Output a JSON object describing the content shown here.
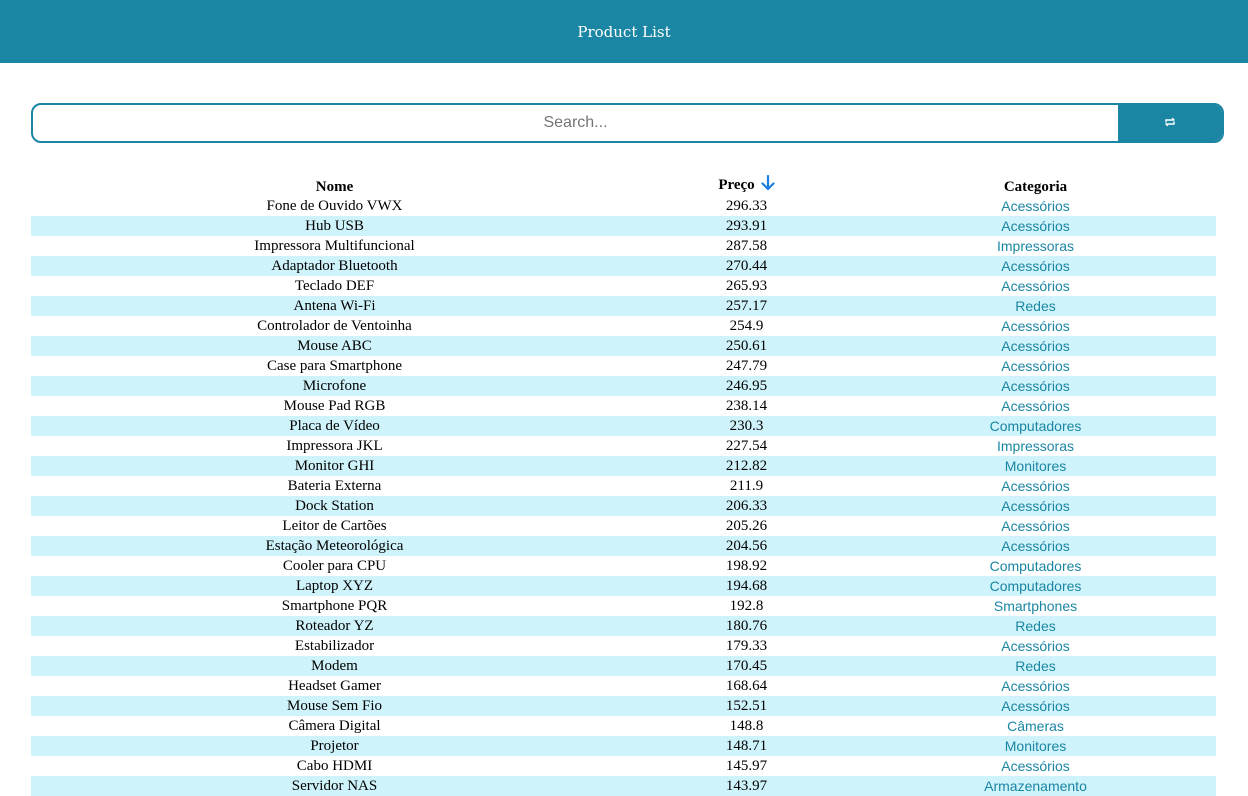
{
  "header": {
    "title": "Product List"
  },
  "search": {
    "placeholder": "Search..."
  },
  "icons": {
    "search_button": "refresh-icon",
    "sort_indicator": "arrow-down-icon"
  },
  "colors": {
    "accent": "#1a86a3",
    "row_stripe": "#cff3fb",
    "sort_arrow": "#1a7fe0"
  },
  "table": {
    "columns": {
      "name": "Nome",
      "price": "Preço",
      "category": "Categoria"
    },
    "sort": {
      "column": "price",
      "direction": "desc"
    },
    "rows": [
      {
        "name": "Fone de Ouvido VWX",
        "price": "296.33",
        "category": "Acessórios"
      },
      {
        "name": "Hub USB",
        "price": "293.91",
        "category": "Acessórios"
      },
      {
        "name": "Impressora Multifuncional",
        "price": "287.58",
        "category": "Impressoras"
      },
      {
        "name": "Adaptador Bluetooth",
        "price": "270.44",
        "category": "Acessórios"
      },
      {
        "name": "Teclado DEF",
        "price": "265.93",
        "category": "Acessórios"
      },
      {
        "name": "Antena Wi-Fi",
        "price": "257.17",
        "category": "Redes"
      },
      {
        "name": "Controlador de Ventoinha",
        "price": "254.9",
        "category": "Acessórios"
      },
      {
        "name": "Mouse ABC",
        "price": "250.61",
        "category": "Acessórios"
      },
      {
        "name": "Case para Smartphone",
        "price": "247.79",
        "category": "Acessórios"
      },
      {
        "name": "Microfone",
        "price": "246.95",
        "category": "Acessórios"
      },
      {
        "name": "Mouse Pad RGB",
        "price": "238.14",
        "category": "Acessórios"
      },
      {
        "name": "Placa de Vídeo",
        "price": "230.3",
        "category": "Computadores"
      },
      {
        "name": "Impressora JKL",
        "price": "227.54",
        "category": "Impressoras"
      },
      {
        "name": "Monitor GHI",
        "price": "212.82",
        "category": "Monitores"
      },
      {
        "name": "Bateria Externa",
        "price": "211.9",
        "category": "Acessórios"
      },
      {
        "name": "Dock Station",
        "price": "206.33",
        "category": "Acessórios"
      },
      {
        "name": "Leitor de Cartões",
        "price": "205.26",
        "category": "Acessórios"
      },
      {
        "name": "Estação Meteorológica",
        "price": "204.56",
        "category": "Acessórios"
      },
      {
        "name": "Cooler para CPU",
        "price": "198.92",
        "category": "Computadores"
      },
      {
        "name": "Laptop XYZ",
        "price": "194.68",
        "category": "Computadores"
      },
      {
        "name": "Smartphone PQR",
        "price": "192.8",
        "category": "Smartphones"
      },
      {
        "name": "Roteador YZ",
        "price": "180.76",
        "category": "Redes"
      },
      {
        "name": "Estabilizador",
        "price": "179.33",
        "category": "Acessórios"
      },
      {
        "name": "Modem",
        "price": "170.45",
        "category": "Redes"
      },
      {
        "name": "Headset Gamer",
        "price": "168.64",
        "category": "Acessórios"
      },
      {
        "name": "Mouse Sem Fio",
        "price": "152.51",
        "category": "Acessórios"
      },
      {
        "name": "Câmera Digital",
        "price": "148.8",
        "category": "Câmeras"
      },
      {
        "name": "Projetor",
        "price": "148.71",
        "category": "Monitores"
      },
      {
        "name": "Cabo HDMI",
        "price": "145.97",
        "category": "Acessórios"
      },
      {
        "name": "Servidor NAS",
        "price": "143.97",
        "category": "Armazenamento"
      }
    ]
  }
}
